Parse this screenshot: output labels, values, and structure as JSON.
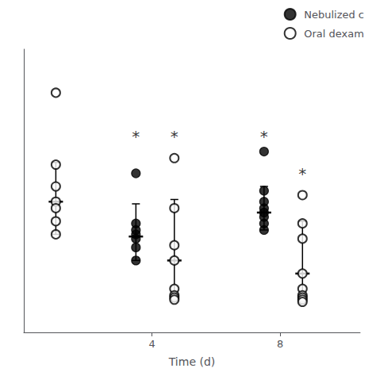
{
  "chart_data": {
    "type": "scatter",
    "xlabel": "Time (d)",
    "xlim": [
      0.0,
      10.5
    ],
    "xticks": [
      4,
      8
    ],
    "ylim": [
      -0.5,
      12.5
    ],
    "yticks": [],
    "tick_labels": "x",
    "grid": false,
    "legend": "upper right",
    "series": [
      {
        "name": "Nebulized c",
        "color": "#000000",
        "marker": "circle",
        "groups": [
          {
            "x": 3.5,
            "values": [
              6.8,
              4.5,
              4.2,
              4.0,
              3.8,
              3.4,
              2.8
            ],
            "mean": 3.9,
            "err_up": 1.5,
            "err_dn": 1.1
          },
          {
            "x": 7.5,
            "values": [
              7.8,
              6.0,
              5.5,
              5.2,
              5.0,
              4.8,
              4.5,
              4.2
            ],
            "mean": 5.0,
            "err_up": 1.2,
            "err_dn": 0.8
          }
        ]
      },
      {
        "name": "Oral dexam",
        "color": "#000000",
        "marker": "emptyCircle",
        "groups": [
          {
            "x": 1.0,
            "values": [
              10.5,
              7.2,
              6.2,
              5.5,
              5.2,
              4.6,
              4.0
            ],
            "mean": 5.5,
            "err_up": 1.8,
            "err_dn": 1.5
          },
          {
            "x": 4.7,
            "values": [
              7.5,
              5.2,
              3.5,
              2.8,
              1.5,
              1.2,
              1.1,
              1.0
            ],
            "mean": 2.8,
            "err_up": 2.8,
            "err_dn": 1.8
          },
          {
            "x": 8.7,
            "values": [
              5.8,
              4.5,
              3.8,
              2.2,
              1.5,
              1.2,
              1.1,
              1.0,
              0.9
            ],
            "mean": 2.2,
            "err_up": 2.4,
            "err_dn": 1.3
          }
        ]
      }
    ],
    "annotations": [
      {
        "x": 3.5,
        "y": 8.5,
        "text": "*"
      },
      {
        "x": 4.7,
        "y": 8.5,
        "text": "*"
      },
      {
        "x": 7.5,
        "y": 8.5,
        "text": "*"
      },
      {
        "x": 8.7,
        "y": 6.8,
        "text": "*"
      }
    ]
  }
}
